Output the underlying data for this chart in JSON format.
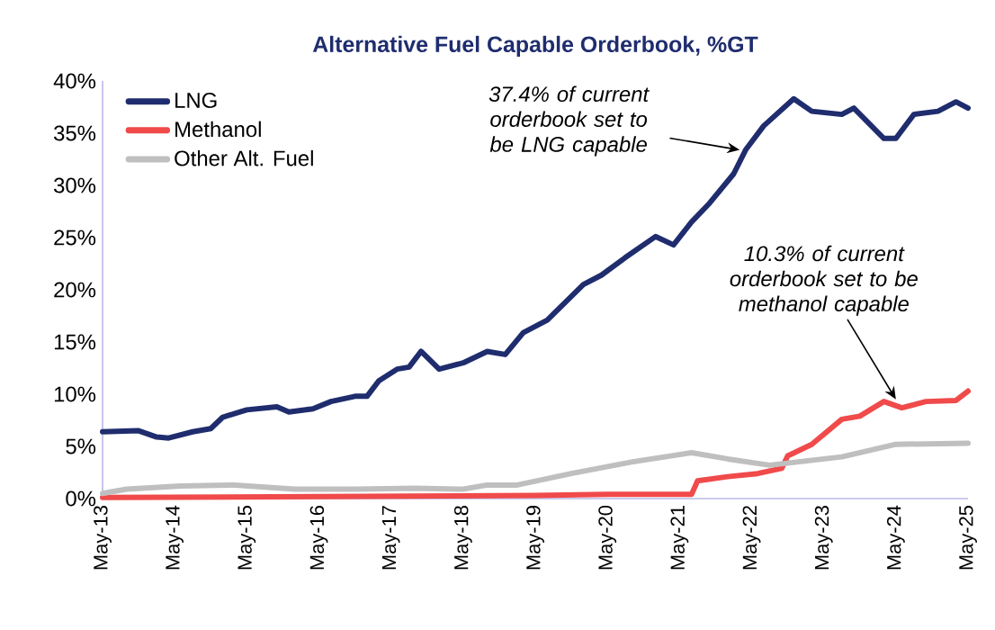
{
  "chart_data": {
    "type": "line",
    "title": "Alternative Fuel Capable Orderbook, %GT",
    "xlim": [
      "2013-05",
      "2025-05"
    ],
    "xticks": [
      {
        "value": "2013-05",
        "label": "May-13"
      },
      {
        "value": "2014-05",
        "label": "May-14"
      },
      {
        "value": "2015-05",
        "label": "May-15"
      },
      {
        "value": "2016-05",
        "label": "May-16"
      },
      {
        "value": "2017-05",
        "label": "May-17"
      },
      {
        "value": "2018-05",
        "label": "May-18"
      },
      {
        "value": "2019-05",
        "label": "May-19"
      },
      {
        "value": "2020-05",
        "label": "May-20"
      },
      {
        "value": "2021-05",
        "label": "May-21"
      },
      {
        "value": "2022-05",
        "label": "May-22"
      },
      {
        "value": "2023-05",
        "label": "May-23"
      },
      {
        "value": "2024-05",
        "label": "May-24"
      },
      {
        "value": "2025-05",
        "label": "May-25"
      }
    ],
    "ylim": [
      0,
      40
    ],
    "yticks": [
      {
        "value": 0,
        "label": "0%"
      },
      {
        "value": 5,
        "label": "5%"
      },
      {
        "value": 10,
        "label": "10%"
      },
      {
        "value": 15,
        "label": "15%"
      },
      {
        "value": 20,
        "label": "20%"
      },
      {
        "value": 25,
        "label": "25%"
      },
      {
        "value": 30,
        "label": "30%"
      },
      {
        "value": 35,
        "label": "35%"
      },
      {
        "value": 40,
        "label": "40%"
      }
    ],
    "legend": "top left",
    "marker": "none",
    "line_style": "solid",
    "series": [
      {
        "name": "LNG",
        "color": "#1f2d6e",
        "x": [
          "2013-05",
          "2013-11",
          "2014-02",
          "2014-04",
          "2014-08",
          "2014-11",
          "2015-01",
          "2015-05",
          "2015-10",
          "2015-12",
          "2016-04",
          "2016-07",
          "2016-11",
          "2017-01",
          "2017-03",
          "2017-06",
          "2017-08",
          "2017-10",
          "2018-01",
          "2018-05",
          "2018-09",
          "2018-12",
          "2019-03",
          "2019-07",
          "2020-01",
          "2020-04",
          "2020-08",
          "2021-01",
          "2021-04",
          "2021-07",
          "2021-10",
          "2022-02",
          "2022-04",
          "2022-07",
          "2022-12",
          "2023-03",
          "2023-08",
          "2023-10",
          "2024-03",
          "2024-05",
          "2024-08",
          "2024-12",
          "2025-03",
          "2025-05"
        ],
        "values": [
          6.4,
          6.5,
          5.9,
          5.8,
          6.4,
          6.7,
          7.8,
          8.5,
          8.8,
          8.3,
          8.6,
          9.3,
          9.8,
          9.8,
          11.3,
          12.4,
          12.6,
          14.1,
          12.4,
          13.0,
          14.1,
          13.8,
          15.9,
          17.1,
          20.5,
          21.4,
          23.1,
          25.1,
          24.3,
          26.5,
          28.3,
          31.1,
          33.4,
          35.7,
          38.3,
          37.1,
          36.8,
          37.4,
          34.5,
          34.5,
          36.8,
          37.1,
          38.0,
          37.4
        ]
      },
      {
        "name": "Methanol",
        "color": "#f04a4a",
        "x": [
          "2013-05",
          "2016-05",
          "2019-05",
          "2020-05",
          "2021-07",
          "2021-08",
          "2022-01",
          "2022-06",
          "2022-10",
          "2022-11",
          "2023-03",
          "2023-08",
          "2023-11",
          "2024-03",
          "2024-06",
          "2024-10",
          "2025-03",
          "2025-05"
        ],
        "values": [
          0.1,
          0.2,
          0.3,
          0.4,
          0.4,
          1.7,
          2.1,
          2.4,
          2.9,
          4.1,
          5.2,
          7.6,
          7.9,
          9.3,
          8.7,
          9.3,
          9.4,
          10.3
        ]
      },
      {
        "name": "Other Alt. Fuel",
        "color": "#bfbfbf",
        "x": [
          "2013-05",
          "2013-09",
          "2014-06",
          "2015-03",
          "2016-01",
          "2016-11",
          "2017-09",
          "2018-05",
          "2018-09",
          "2019-02",
          "2019-11",
          "2020-09",
          "2021-07",
          "2022-01",
          "2022-08",
          "2023-08",
          "2024-05",
          "2025-05"
        ],
        "values": [
          0.5,
          0.9,
          1.2,
          1.3,
          0.9,
          0.9,
          1.0,
          0.9,
          1.3,
          1.3,
          2.4,
          3.5,
          4.4,
          3.8,
          3.2,
          4.0,
          5.2,
          5.3
        ]
      }
    ],
    "annotations": [
      {
        "text": "37.4% of current orderbook set to be LNG capable",
        "x": "2022-03",
        "y": 33.4
      },
      {
        "text": "10.3% of current orderbook set to be methanol capable",
        "x": "2024-05",
        "y": 9.5
      }
    ]
  }
}
